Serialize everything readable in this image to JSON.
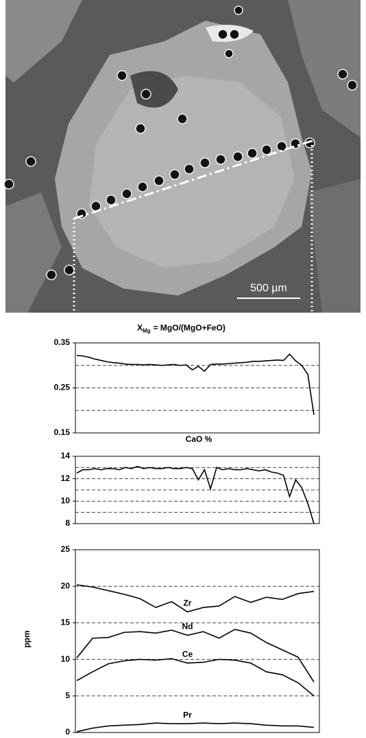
{
  "image": {
    "scale_bar": "500 µm"
  },
  "chart_data": [
    {
      "type": "line",
      "title": "X",
      "title_subscript": "Mg",
      "title_rest": "= MgO/(MgO+FeO)",
      "ylim": [
        0.15,
        0.35
      ],
      "yticks": [
        0.15,
        0.25,
        0.35
      ],
      "grid_lines": [
        0.2,
        0.25,
        0.3
      ],
      "series": [
        {
          "color": "#000000",
          "values": [
            0.322,
            0.321,
            0.318,
            0.314,
            0.311,
            0.308,
            0.306,
            0.305,
            0.303,
            0.302,
            0.302,
            0.301,
            0.302,
            0.301,
            0.3,
            0.301,
            0.302,
            0.3,
            0.301,
            0.29,
            0.298,
            0.287,
            0.302,
            0.303,
            0.303,
            0.304,
            0.305,
            0.306,
            0.307,
            0.309,
            0.309,
            0.31,
            0.311,
            0.312,
            0.311,
            0.325,
            0.31,
            0.3,
            0.28,
            0.19
          ]
        }
      ]
    },
    {
      "type": "line",
      "title": "CaO %",
      "ylim": [
        8,
        14
      ],
      "yticks": [
        8,
        10,
        12,
        14
      ],
      "grid_lines": [
        9,
        10,
        11,
        12,
        13
      ],
      "series": [
        {
          "color": "#000000",
          "values": [
            12.5,
            12.8,
            12.8,
            12.9,
            12.8,
            12.9,
            12.9,
            12.8,
            13.0,
            12.9,
            13.1,
            12.9,
            13.0,
            12.9,
            12.9,
            13.0,
            12.9,
            12.9,
            13.0,
            12.9,
            11.9,
            12.8,
            11.1,
            13.0,
            12.8,
            12.9,
            12.8,
            12.8,
            12.9,
            12.8,
            12.7,
            12.8,
            12.6,
            12.5,
            12.3,
            10.4,
            11.9,
            11.2,
            9.8,
            8.0
          ]
        }
      ]
    },
    {
      "type": "line",
      "ylabel": "ppm",
      "ylim": [
        0,
        25
      ],
      "yticks": [
        0,
        5,
        10,
        15,
        20,
        25
      ],
      "grid_lines": [
        5,
        10,
        15,
        20
      ],
      "series": [
        {
          "name": "Zr",
          "color": "#000000",
          "values": [
            20.2,
            19.9,
            19.4,
            18.9,
            18.3,
            17.1,
            17.9,
            16.5,
            17.1,
            17.3,
            18.6,
            17.8,
            18.5,
            18.2,
            19.0,
            19.3
          ]
        },
        {
          "name": "Nd",
          "color": "#000000",
          "values": [
            10.2,
            12.9,
            13.0,
            13.7,
            13.8,
            13.6,
            14.0,
            13.3,
            13.8,
            12.9,
            14.1,
            13.6,
            12.3,
            11.3,
            10.3,
            6.9
          ]
        },
        {
          "name": "Ce",
          "color": "#000000",
          "values": [
            7.1,
            8.3,
            9.4,
            9.8,
            10.0,
            9.9,
            10.1,
            9.5,
            9.6,
            10.0,
            9.9,
            9.5,
            8.3,
            7.9,
            6.8,
            5.0
          ]
        },
        {
          "name": "Pr",
          "color": "#000000",
          "values": [
            0.1,
            0.6,
            0.9,
            1.0,
            1.1,
            1.3,
            1.2,
            1.2,
            1.3,
            1.2,
            1.3,
            1.2,
            1.0,
            0.9,
            0.9,
            0.7
          ]
        }
      ]
    }
  ]
}
